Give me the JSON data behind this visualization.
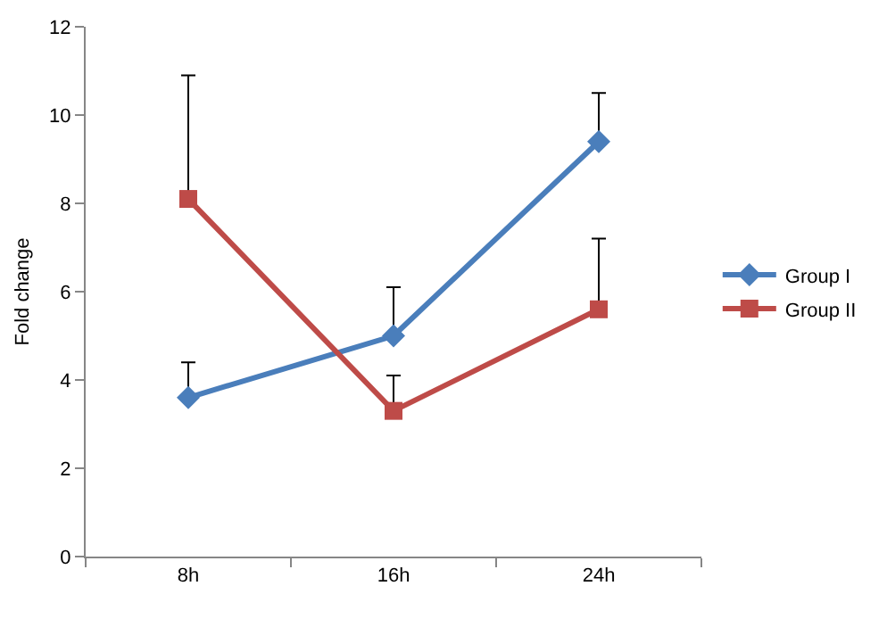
{
  "chart_data": {
    "type": "line",
    "ylabel": "Fold change",
    "categories": [
      "8h",
      "16h",
      "24h"
    ],
    "ylim": [
      0,
      12
    ],
    "yticks": [
      0,
      2,
      4,
      6,
      8,
      10,
      12
    ],
    "grid": false,
    "legend": "right",
    "line_style": "solid",
    "series": [
      {
        "name": "Group I",
        "color": "#4a7ebb",
        "marker": "diamond",
        "values": [
          3.6,
          5.0,
          9.4
        ],
        "errors": [
          [
            3.6,
            4.4
          ],
          [
            5.0,
            6.1
          ],
          [
            9.4,
            10.5
          ]
        ]
      },
      {
        "name": "Group II",
        "color": "#be4b48",
        "marker": "square",
        "values": [
          8.1,
          3.3,
          5.6
        ],
        "errors": [
          [
            8.1,
            10.9
          ],
          [
            3.3,
            4.1
          ],
          [
            5.6,
            7.2
          ]
        ]
      }
    ]
  }
}
